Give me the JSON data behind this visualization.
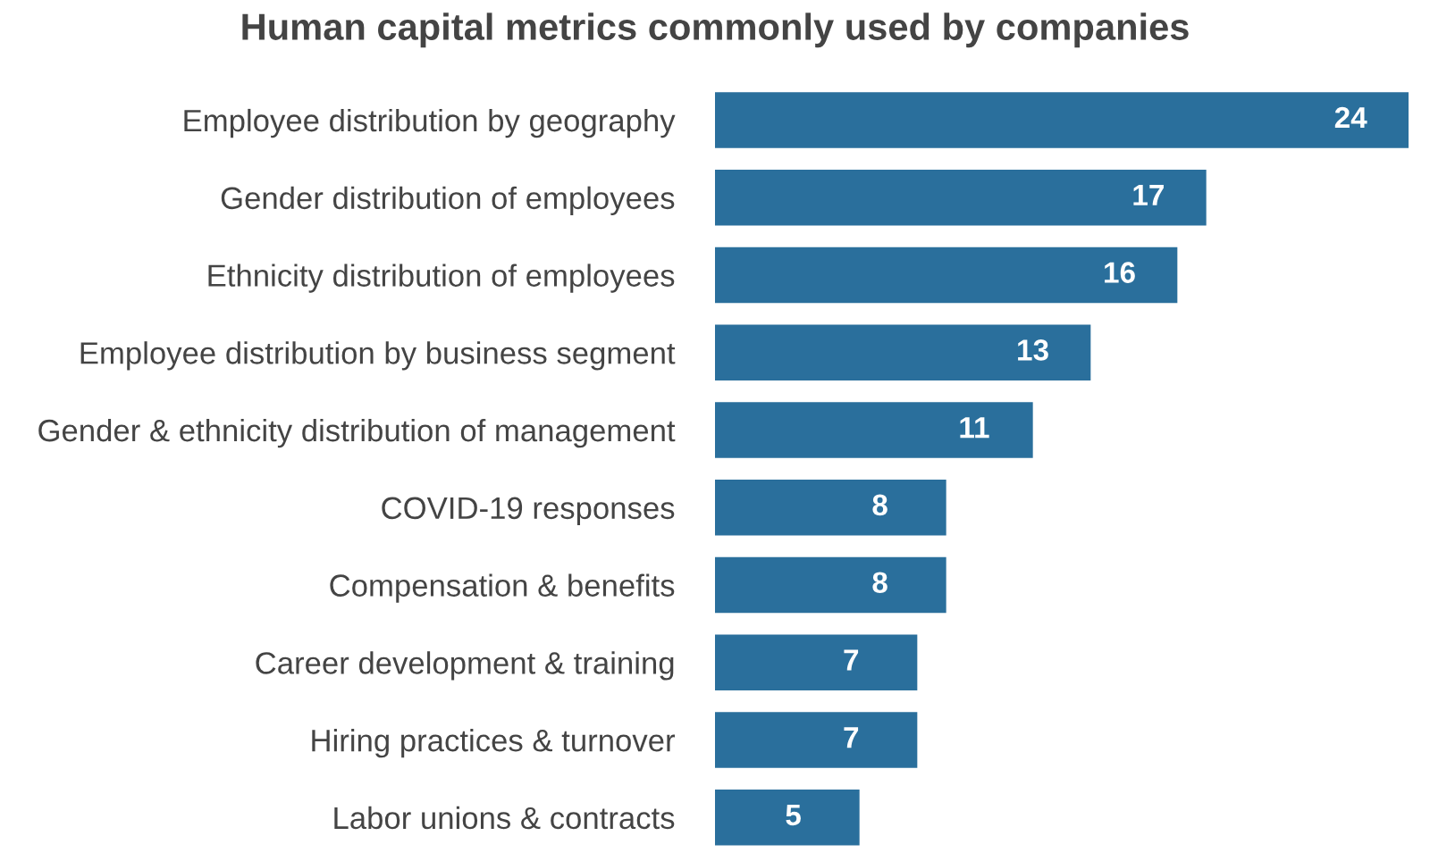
{
  "chart_data": {
    "type": "bar",
    "orientation": "horizontal",
    "title": "Human capital metrics commonly used by companies",
    "categories": [
      "Employee distribution by geography",
      "Gender distribution of employees",
      "Ethnicity distribution of employees",
      "Employee distribution by business segment",
      "Gender & ethnicity distribution of management",
      "COVID-19 responses",
      "Compensation & benefits",
      "Career development & training",
      "Hiring practices & turnover",
      "Labor unions & contracts"
    ],
    "values": [
      24,
      17,
      16,
      13,
      11,
      8,
      8,
      7,
      7,
      5
    ],
    "color": "#2a6f9c",
    "data_labels": true,
    "grid": false,
    "tick_labels": "y"
  }
}
